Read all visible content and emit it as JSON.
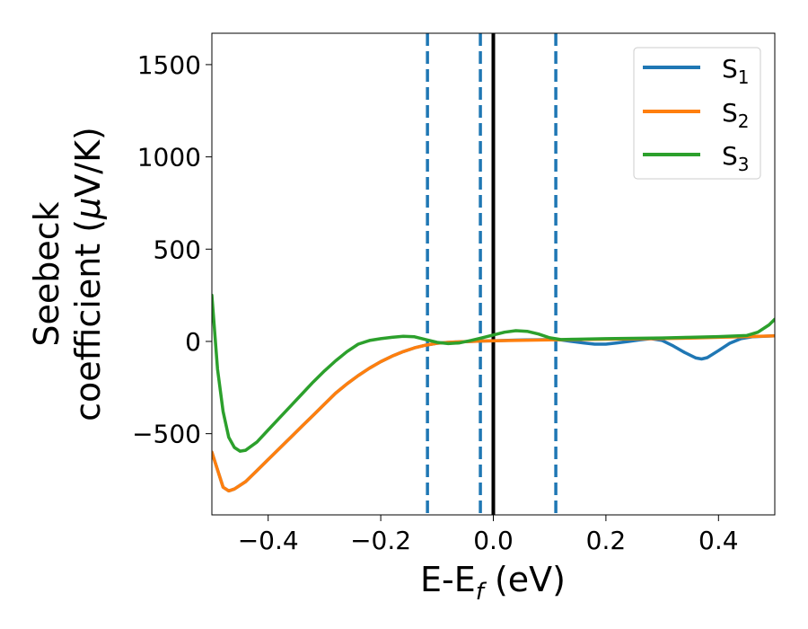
{
  "chart_data": {
    "type": "line",
    "title": "",
    "xlabel": {
      "base": "E-E",
      "sub": "f",
      "suffix": " (eV)"
    },
    "ylabel": {
      "line1": "Seebeck",
      "line2_prefix": "coefficient  (",
      "mu": "μ",
      "line2_suffix": "V/K)"
    },
    "xlim": [
      -0.5,
      0.5
    ],
    "ylim": [
      -940,
      1670
    ],
    "xticks": [
      -0.4,
      -0.2,
      0.0,
      0.2,
      0.4
    ],
    "xtick_labels": [
      "−0.4",
      "−0.2",
      "0.0",
      "0.2",
      "0.4"
    ],
    "yticks": [
      -500,
      0,
      500,
      1000,
      1500
    ],
    "ytick_labels": [
      "−500",
      "0",
      "500",
      "1000",
      "1500"
    ],
    "grid": false,
    "legend_position": "top-right",
    "series": [
      {
        "name": "S",
        "sub": "1",
        "color": "#1f77b4",
        "x": [
          -0.5,
          -0.48,
          -0.47,
          -0.46,
          -0.44,
          -0.42,
          -0.4,
          -0.38,
          -0.36,
          -0.34,
          -0.32,
          -0.3,
          -0.28,
          -0.26,
          -0.24,
          -0.22,
          -0.2,
          -0.18,
          -0.16,
          -0.14,
          -0.12,
          -0.1,
          -0.08,
          -0.06,
          -0.04,
          -0.02,
          0.0,
          0.02,
          0.04,
          0.06,
          0.08,
          0.1,
          0.12,
          0.14,
          0.16,
          0.18,
          0.2,
          0.22,
          0.24,
          0.26,
          0.28,
          0.3,
          0.32,
          0.34,
          0.36,
          0.37,
          0.38,
          0.4,
          0.42,
          0.44,
          0.46,
          0.48,
          0.5
        ],
        "y": [
          -600,
          -790,
          -810,
          -800,
          -760,
          -700,
          -640,
          -580,
          -520,
          -460,
          -400,
          -340,
          -280,
          -230,
          -185,
          -145,
          -110,
          -80,
          -55,
          -35,
          -20,
          -10,
          -5,
          -2,
          0,
          2,
          3,
          5,
          7,
          8,
          9,
          10,
          8,
          0,
          -8,
          -15,
          -15,
          -8,
          0,
          8,
          15,
          5,
          -25,
          -60,
          -90,
          -95,
          -88,
          -50,
          -10,
          15,
          25,
          28,
          30
        ]
      },
      {
        "name": "S",
        "sub": "2",
        "color": "#ff7f0e",
        "x": [
          -0.5,
          -0.48,
          -0.47,
          -0.46,
          -0.44,
          -0.42,
          -0.4,
          -0.38,
          -0.36,
          -0.34,
          -0.32,
          -0.3,
          -0.28,
          -0.26,
          -0.24,
          -0.22,
          -0.2,
          -0.18,
          -0.16,
          -0.14,
          -0.12,
          -0.1,
          -0.08,
          -0.06,
          -0.04,
          -0.02,
          0.0,
          0.05,
          0.1,
          0.15,
          0.2,
          0.25,
          0.3,
          0.35,
          0.4,
          0.45,
          0.5
        ],
        "y": [
          -600,
          -790,
          -810,
          -800,
          -760,
          -700,
          -640,
          -580,
          -520,
          -460,
          -400,
          -340,
          -280,
          -230,
          -185,
          -145,
          -110,
          -80,
          -55,
          -35,
          -20,
          -10,
          -5,
          -2,
          0,
          2,
          3,
          6,
          8,
          10,
          12,
          14,
          16,
          18,
          22,
          26,
          30
        ]
      },
      {
        "name": "S",
        "sub": "3",
        "color": "#2ca02c",
        "x": [
          -0.5,
          -0.49,
          -0.48,
          -0.47,
          -0.46,
          -0.45,
          -0.44,
          -0.42,
          -0.4,
          -0.38,
          -0.36,
          -0.34,
          -0.32,
          -0.3,
          -0.28,
          -0.26,
          -0.24,
          -0.22,
          -0.2,
          -0.18,
          -0.16,
          -0.14,
          -0.12,
          -0.1,
          -0.08,
          -0.06,
          -0.04,
          -0.02,
          0.0,
          0.02,
          0.04,
          0.06,
          0.08,
          0.1,
          0.12,
          0.15,
          0.2,
          0.25,
          0.3,
          0.35,
          0.4,
          0.45,
          0.47,
          0.49,
          0.5
        ],
        "y": [
          250,
          -150,
          -380,
          -520,
          -575,
          -595,
          -590,
          -545,
          -480,
          -415,
          -350,
          -285,
          -220,
          -160,
          -105,
          -55,
          -15,
          5,
          15,
          22,
          28,
          25,
          10,
          -5,
          -12,
          -8,
          5,
          20,
          35,
          50,
          58,
          55,
          40,
          20,
          10,
          12,
          15,
          17,
          19,
          22,
          26,
          32,
          50,
          90,
          120
        ]
      }
    ],
    "vlines": [
      {
        "x": -0.117,
        "color": "#1f77b4",
        "style": "dashed"
      },
      {
        "x": -0.023,
        "color": "#1f77b4",
        "style": "dashed"
      },
      {
        "x": 0.0,
        "color": "#000000",
        "style": "solid"
      },
      {
        "x": 0.111,
        "color": "#1f77b4",
        "style": "dashed"
      }
    ]
  }
}
